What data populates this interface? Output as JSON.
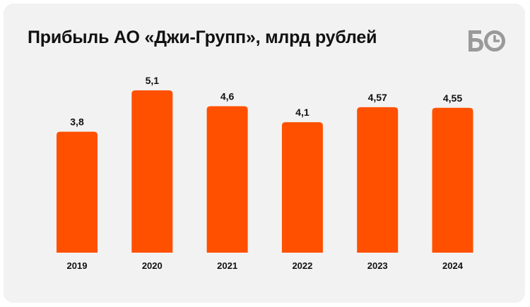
{
  "header": {
    "title": "Прибыль  АО «Джи-Групп», млрд рублей",
    "logo_icon": "bo-logo-icon"
  },
  "colors": {
    "bar": "#ff5000",
    "background": "#f2f2f2",
    "text": "#111111",
    "logo": "#9a9a9a"
  },
  "chart_data": {
    "type": "bar",
    "title": "Прибыль  АО «Джи-Групп», млрд рублей",
    "categories": [
      "2019",
      "2020",
      "2021",
      "2022",
      "2023",
      "2024"
    ],
    "values": [
      3.8,
      5.1,
      4.6,
      4.1,
      4.57,
      4.55
    ],
    "value_labels": [
      "3,8",
      "5,1",
      "4,6",
      "4,1",
      "4,57",
      "4,55"
    ],
    "ylim": [
      0,
      5.1
    ],
    "grid": false,
    "legend": "none"
  }
}
